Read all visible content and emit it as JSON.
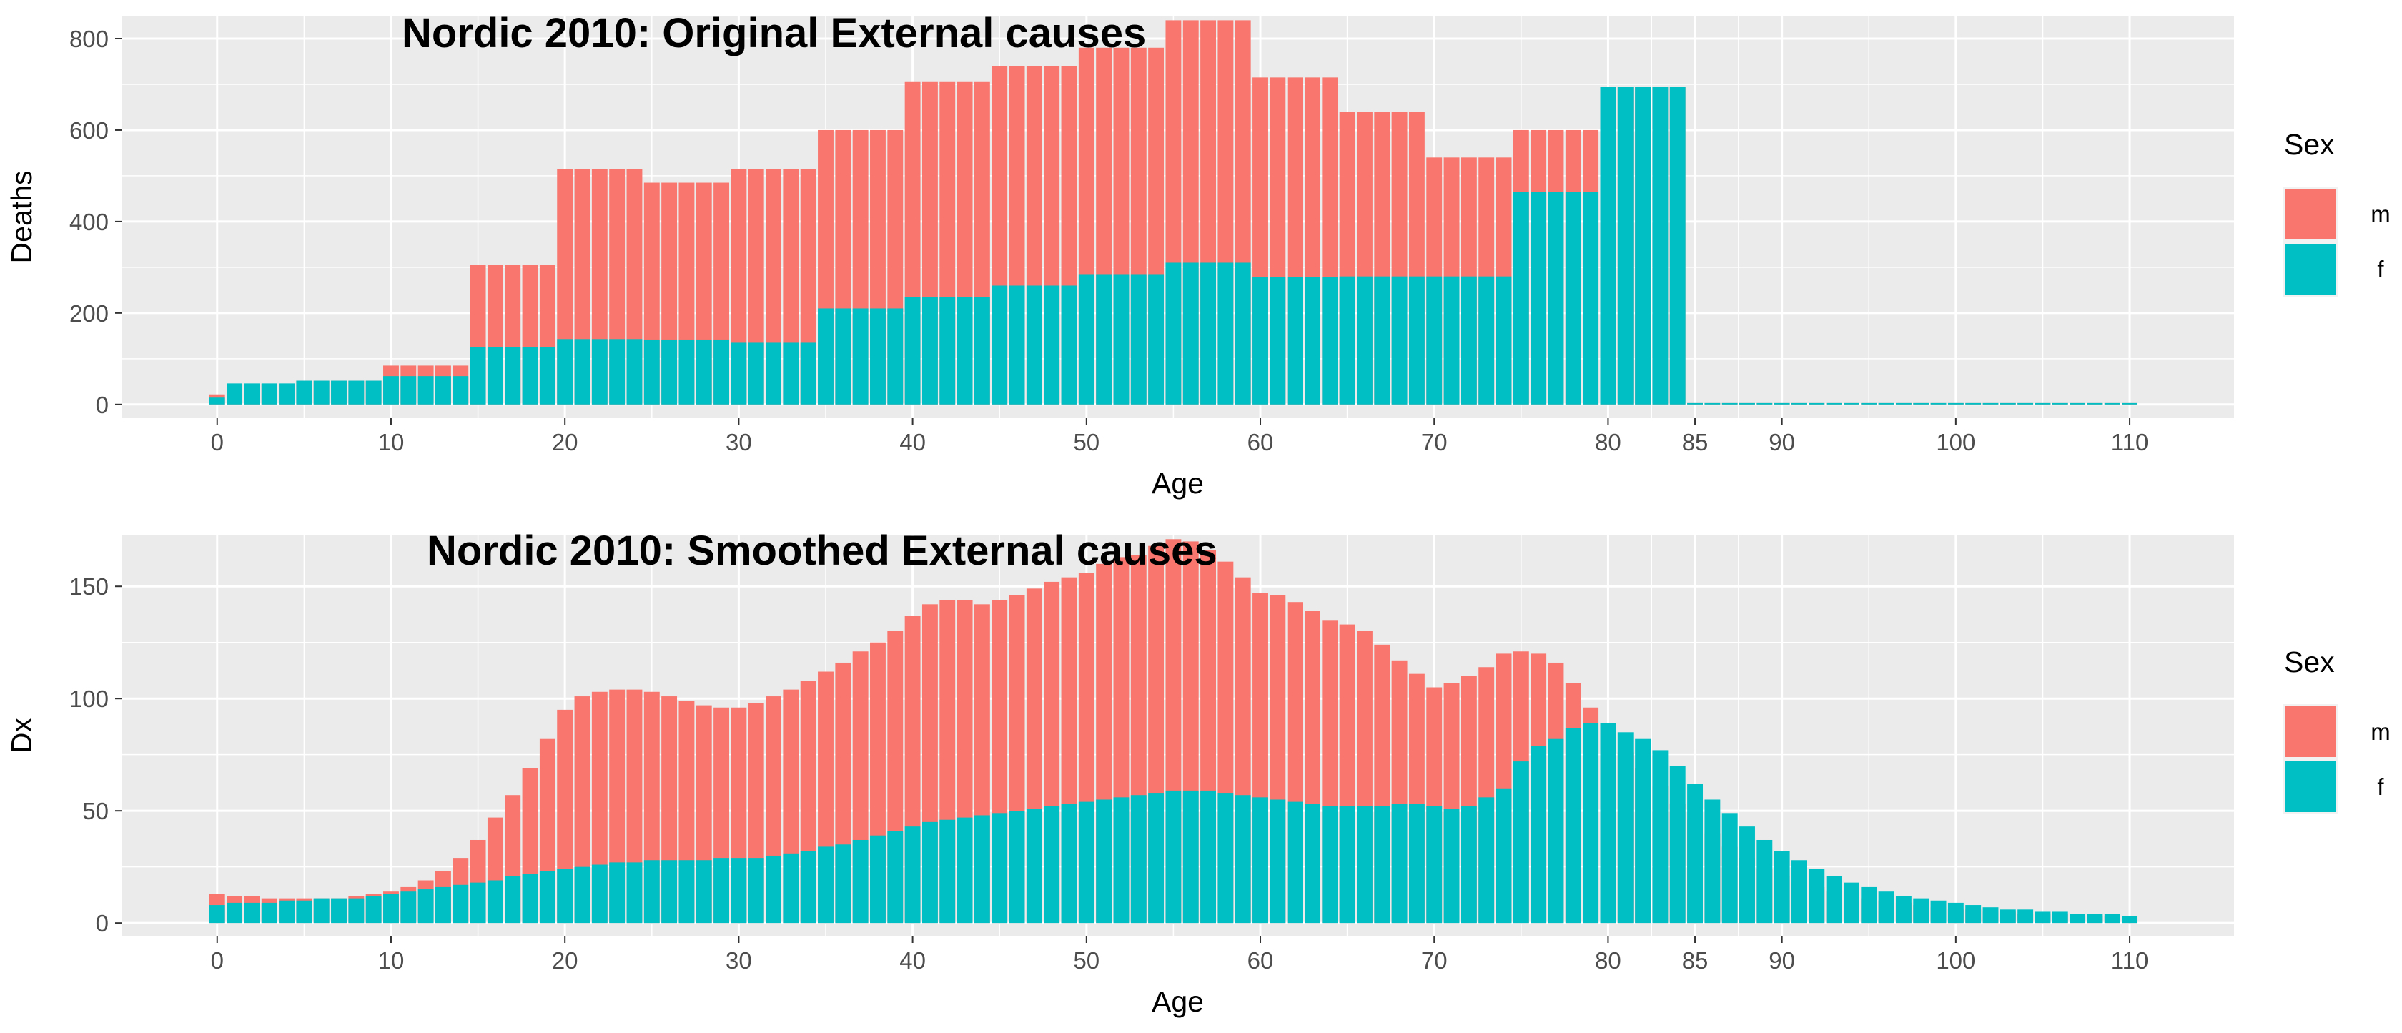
{
  "chart_data": [
    {
      "type": "bar",
      "title": "Nordic 2010: Original External causes",
      "xlabel": "Age",
      "ylabel": "Deaths",
      "xlim": [
        -5.5,
        116
      ],
      "ylim": [
        -30,
        850
      ],
      "x_ticks": [
        0,
        10,
        20,
        30,
        40,
        50,
        60,
        70,
        80,
        85,
        90,
        100,
        110
      ],
      "y_ticks": [
        0,
        200,
        400,
        600,
        800
      ],
      "grid": true,
      "legend": {
        "title": "Sex",
        "position": "right",
        "entries": [
          "m",
          "f"
        ]
      },
      "x": [
        0,
        1,
        2,
        3,
        4,
        5,
        6,
        7,
        8,
        9,
        10,
        11,
        12,
        13,
        14,
        15,
        16,
        17,
        18,
        19,
        20,
        21,
        22,
        23,
        24,
        25,
        26,
        27,
        28,
        29,
        30,
        31,
        32,
        33,
        34,
        35,
        36,
        37,
        38,
        39,
        40,
        41,
        42,
        43,
        44,
        45,
        46,
        47,
        48,
        49,
        50,
        51,
        52,
        53,
        54,
        55,
        56,
        57,
        58,
        59,
        60,
        61,
        62,
        63,
        64,
        65,
        66,
        67,
        68,
        69,
        70,
        71,
        72,
        73,
        74,
        75,
        76,
        77,
        78,
        79,
        80,
        81,
        82,
        83,
        84,
        85,
        86,
        87,
        88,
        89,
        90,
        91,
        92,
        93,
        94,
        95,
        96,
        97,
        98,
        99,
        100,
        101,
        102,
        103,
        104,
        105,
        106,
        107,
        108,
        109,
        110
      ],
      "series": [
        {
          "name": "m",
          "color": "#F8766D",
          "values": [
            22,
            45,
            45,
            45,
            45,
            52,
            52,
            52,
            52,
            52,
            85,
            85,
            85,
            85,
            85,
            305,
            305,
            305,
            305,
            305,
            515,
            515,
            515,
            515,
            515,
            485,
            485,
            485,
            485,
            485,
            515,
            515,
            515,
            515,
            515,
            600,
            600,
            600,
            600,
            600,
            705,
            705,
            705,
            705,
            705,
            740,
            740,
            740,
            740,
            740,
            780,
            780,
            780,
            780,
            780,
            840,
            840,
            840,
            840,
            840,
            715,
            715,
            715,
            715,
            715,
            640,
            640,
            640,
            640,
            640,
            540,
            540,
            540,
            540,
            540,
            600,
            600,
            600,
            600,
            600,
            695,
            695,
            695,
            695,
            695,
            3,
            3,
            3,
            3,
            3,
            3,
            3,
            3,
            3,
            3,
            3,
            3,
            3,
            3,
            3,
            3,
            3,
            3,
            3,
            3,
            3,
            3,
            3,
            3,
            3,
            3
          ]
        },
        {
          "name": "f",
          "color": "#00BFC4",
          "values": [
            15,
            46,
            46,
            46,
            46,
            52,
            52,
            52,
            52,
            52,
            62,
            62,
            62,
            62,
            62,
            125,
            125,
            125,
            125,
            125,
            143,
            143,
            143,
            143,
            143,
            142,
            142,
            142,
            142,
            142,
            135,
            135,
            135,
            135,
            135,
            210,
            210,
            210,
            210,
            210,
            235,
            235,
            235,
            235,
            235,
            260,
            260,
            260,
            260,
            260,
            285,
            285,
            285,
            285,
            285,
            310,
            310,
            310,
            310,
            310,
            278,
            278,
            278,
            278,
            278,
            280,
            280,
            280,
            280,
            280,
            280,
            280,
            280,
            280,
            280,
            465,
            465,
            465,
            465,
            465,
            695,
            695,
            695,
            695,
            695,
            3,
            3,
            3,
            3,
            3,
            3,
            3,
            3,
            3,
            3,
            3,
            3,
            3,
            3,
            3,
            3,
            3,
            3,
            3,
            3,
            3,
            3,
            3,
            3,
            3,
            3
          ]
        }
      ]
    },
    {
      "type": "bar",
      "title": "Nordic 2010: Smoothed External causes",
      "xlabel": "Age",
      "ylabel": "Dx",
      "xlim": [
        -5.5,
        116
      ],
      "ylim": [
        -6,
        173
      ],
      "x_ticks": [
        0,
        10,
        20,
        30,
        40,
        50,
        60,
        70,
        80,
        85,
        90,
        100,
        110
      ],
      "y_ticks": [
        0,
        50,
        100,
        150
      ],
      "grid": true,
      "legend": {
        "title": "Sex",
        "position": "right",
        "entries": [
          "m",
          "f"
        ]
      },
      "x": [
        0,
        1,
        2,
        3,
        4,
        5,
        6,
        7,
        8,
        9,
        10,
        11,
        12,
        13,
        14,
        15,
        16,
        17,
        18,
        19,
        20,
        21,
        22,
        23,
        24,
        25,
        26,
        27,
        28,
        29,
        30,
        31,
        32,
        33,
        34,
        35,
        36,
        37,
        38,
        39,
        40,
        41,
        42,
        43,
        44,
        45,
        46,
        47,
        48,
        49,
        50,
        51,
        52,
        53,
        54,
        55,
        56,
        57,
        58,
        59,
        60,
        61,
        62,
        63,
        64,
        65,
        66,
        67,
        68,
        69,
        70,
        71,
        72,
        73,
        74,
        75,
        76,
        77,
        78,
        79,
        80,
        81,
        82,
        83,
        84,
        85,
        86,
        87,
        88,
        89,
        90,
        91,
        92,
        93,
        94,
        95,
        96,
        97,
        98,
        99,
        100,
        101,
        102,
        103,
        104,
        105,
        106,
        107,
        108,
        109,
        110
      ],
      "series": [
        {
          "name": "m",
          "color": "#F8766D",
          "values": [
            13,
            12,
            12,
            11,
            11,
            11,
            11,
            11,
            12,
            13,
            14,
            16,
            19,
            23,
            29,
            37,
            47,
            57,
            69,
            82,
            95,
            101,
            103,
            104,
            104,
            103,
            101,
            99,
            97,
            96,
            96,
            98,
            101,
            104,
            108,
            112,
            116,
            121,
            125,
            130,
            137,
            142,
            144,
            144,
            142,
            144,
            146,
            149,
            152,
            154,
            156,
            160,
            163,
            164,
            168,
            171,
            170,
            166,
            161,
            154,
            147,
            146,
            143,
            139,
            135,
            133,
            130,
            124,
            117,
            111,
            105,
            107,
            110,
            114,
            120,
            121,
            120,
            116,
            107,
            96,
            84,
            76,
            69,
            61,
            53,
            46,
            40,
            34,
            29,
            24,
            21,
            18,
            16,
            14,
            13,
            11,
            10,
            9,
            8,
            7,
            6,
            6,
            5,
            5,
            4,
            4,
            4,
            3,
            3,
            3,
            3
          ]
        },
        {
          "name": "f",
          "color": "#00BFC4",
          "values": [
            8,
            9,
            9,
            9,
            10,
            10,
            11,
            11,
            11,
            12,
            13,
            14,
            15,
            16,
            17,
            18,
            19,
            21,
            22,
            23,
            24,
            25,
            26,
            27,
            27,
            28,
            28,
            28,
            28,
            29,
            29,
            29,
            30,
            31,
            32,
            34,
            35,
            37,
            39,
            41,
            43,
            45,
            46,
            47,
            48,
            49,
            50,
            51,
            52,
            53,
            54,
            55,
            56,
            57,
            58,
            59,
            59,
            59,
            58,
            57,
            56,
            55,
            54,
            53,
            52,
            52,
            52,
            52,
            53,
            53,
            52,
            51,
            52,
            56,
            60,
            72,
            79,
            82,
            87,
            89,
            89,
            85,
            82,
            77,
            70,
            62,
            55,
            49,
            43,
            37,
            32,
            28,
            24,
            21,
            18,
            16,
            14,
            12,
            11,
            10,
            9,
            8,
            7,
            6,
            6,
            5,
            5,
            4,
            4,
            4,
            3
          ]
        }
      ]
    }
  ]
}
